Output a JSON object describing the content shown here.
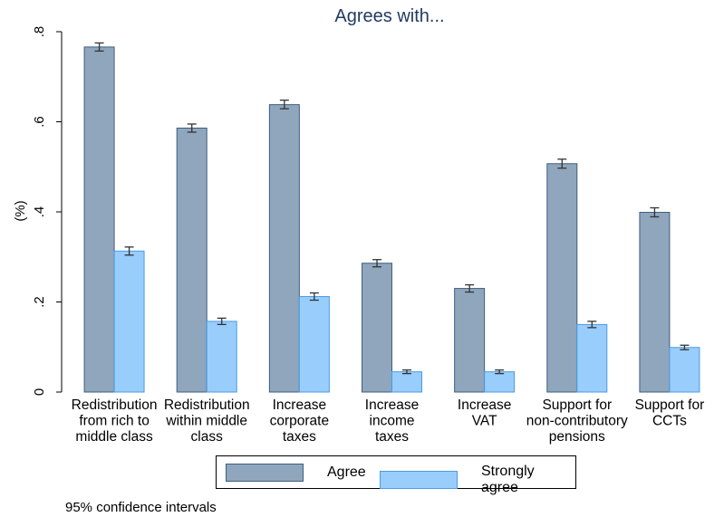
{
  "chart_data": {
    "type": "bar",
    "title": "Agrees with...",
    "ylabel": "(%)",
    "ylim": [
      0,
      0.8
    ],
    "yticks": [
      {
        "value": 0,
        "label": "0"
      },
      {
        "value": 0.2,
        "label": ".2"
      },
      {
        "value": 0.4,
        "label": ".4"
      },
      {
        "value": 0.6,
        "label": ".6"
      },
      {
        "value": 0.8,
        "label": ".8"
      }
    ],
    "categories": [
      [
        "Redistribution",
        "from rich to",
        "middle class"
      ],
      [
        "Redistribution",
        "within middle",
        "class"
      ],
      [
        "Increase",
        "corporate",
        "taxes"
      ],
      [
        "Increase",
        "income",
        "taxes"
      ],
      [
        "Increase",
        "VAT"
      ],
      [
        "Support for",
        "non-contributory",
        "pensions"
      ],
      [
        "Support for",
        "CCTs"
      ]
    ],
    "series": [
      {
        "name": "Agree",
        "color": "#8fa6bd",
        "stroke": "#3e5e7e",
        "values": [
          0.766,
          0.586,
          0.638,
          0.286,
          0.23,
          0.507,
          0.399
        ],
        "ci_low": [
          0.757,
          0.577,
          0.629,
          0.278,
          0.222,
          0.497,
          0.389
        ],
        "ci_high": [
          0.775,
          0.595,
          0.648,
          0.294,
          0.238,
          0.517,
          0.409
        ]
      },
      {
        "name": "Strongly agree",
        "color": "#99cdfb",
        "stroke": "#4a9be6",
        "values": [
          0.313,
          0.157,
          0.212,
          0.045,
          0.045,
          0.15,
          0.099
        ],
        "ci_low": [
          0.304,
          0.15,
          0.204,
          0.041,
          0.041,
          0.143,
          0.094
        ],
        "ci_high": [
          0.322,
          0.164,
          0.22,
          0.049,
          0.049,
          0.157,
          0.104
        ]
      }
    ],
    "legend_position": "bottom",
    "grid": false,
    "note": "95% confidence intervals"
  }
}
